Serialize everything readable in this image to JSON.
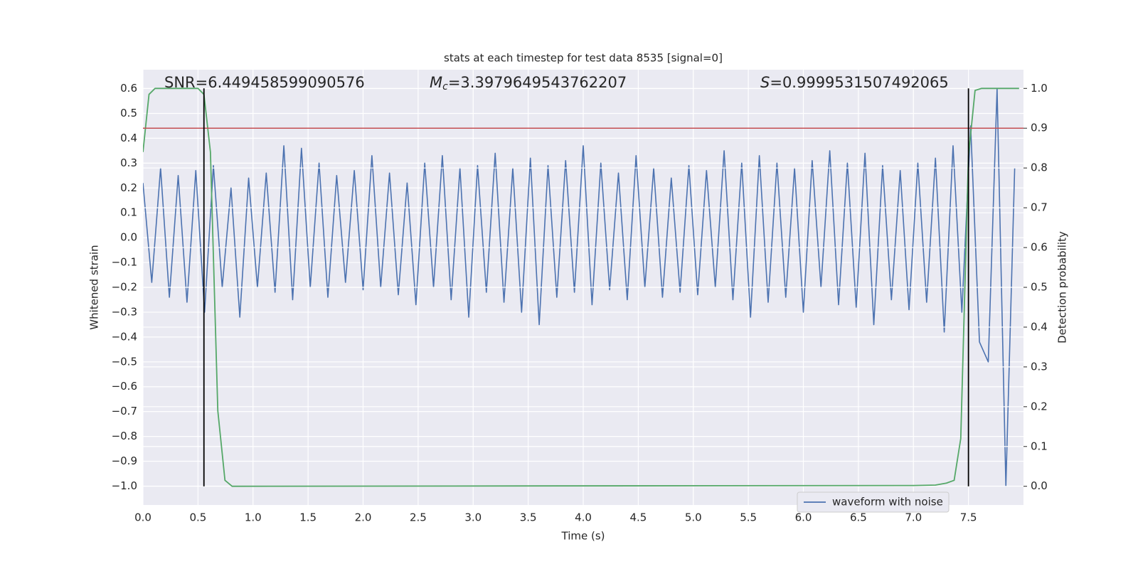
{
  "chart_data": {
    "type": "line",
    "title": "stats at each timestep for test data 8535 [signal=0]",
    "xlabel": "Time (s)",
    "ylabel": "Whitened strain",
    "y2label": "Detection probability",
    "annotations": [
      {
        "text": "SNR=6.449458599090576"
      },
      {
        "symbol": "M",
        "subscript": "c",
        "text": "=3.3979649543762207"
      },
      {
        "symbol": "S",
        "text": "=0.9999531507492065"
      }
    ],
    "xlim": [
      0,
      8.0
    ],
    "ylim": [
      -1.076,
      0.676
    ],
    "y2lim": [
      -0.047,
      1.047
    ],
    "xticks": [
      {
        "value": 0,
        "label": "0.0"
      },
      0.5,
      {
        "value": 1,
        "label": "1.0"
      },
      1.5,
      {
        "value": 2,
        "label": "2.0"
      },
      2.5,
      {
        "value": 3,
        "label": "3.0"
      },
      3.5,
      {
        "value": 4,
        "label": "4.0"
      },
      4.5,
      {
        "value": 5,
        "label": "5.0"
      },
      5.5,
      {
        "value": 6,
        "label": "6.0"
      },
      6.5,
      {
        "value": 7,
        "label": "7.0"
      },
      7.5
    ],
    "yticks": [
      {
        "value": -1.0,
        "label": "−1.0"
      },
      {
        "value": -0.9,
        "label": "−0.9"
      },
      {
        "value": -0.8,
        "label": "−0.8"
      },
      {
        "value": -0.7,
        "label": "−0.7"
      },
      {
        "value": -0.6,
        "label": "−0.6"
      },
      {
        "value": -0.5,
        "label": "−0.5"
      },
      {
        "value": -0.4,
        "label": "−0.4"
      },
      {
        "value": -0.3,
        "label": "−0.3"
      },
      {
        "value": -0.2,
        "label": "−0.2"
      },
      {
        "value": -0.1,
        "label": "−0.1"
      },
      {
        "value": 0,
        "label": "0.0"
      },
      0.1,
      0.2,
      0.3,
      0.4,
      0.5,
      0.6
    ],
    "y2ticks": [
      {
        "value": 0,
        "label": "0.0"
      },
      0.1,
      0.2,
      0.3,
      0.4,
      0.5,
      0.6,
      0.7,
      0.8,
      0.9,
      {
        "value": 1,
        "label": "1.0"
      }
    ],
    "grid": true,
    "legend": "lower right",
    "series": [
      {
        "name": "waveform with noise",
        "color": "#4c72b0",
        "axis": "y",
        "x": [
          0,
          0.08,
          0.16,
          0.24,
          0.32,
          0.4,
          0.48,
          0.56,
          0.64,
          0.72,
          0.8,
          0.88,
          0.96,
          1.04,
          1.12,
          1.2,
          1.28,
          1.36,
          1.44,
          1.52,
          1.6,
          1.68,
          1.76,
          1.84,
          1.92,
          2,
          2.08,
          2.16,
          2.24,
          2.32,
          2.4,
          2.48,
          2.56,
          2.64,
          2.72,
          2.8,
          2.88,
          2.96,
          3.04,
          3.12,
          3.2,
          3.28,
          3.36,
          3.44,
          3.52,
          3.6,
          3.68,
          3.76,
          3.84,
          3.92,
          4,
          4.08,
          4.16,
          4.24,
          4.32,
          4.4,
          4.48,
          4.56,
          4.64,
          4.72,
          4.8,
          4.88,
          4.96,
          5.04,
          5.12,
          5.2,
          5.28,
          5.36,
          5.44,
          5.52,
          5.6,
          5.68,
          5.76,
          5.84,
          5.92,
          6,
          6.08,
          6.16,
          6.24,
          6.32,
          6.4,
          6.48,
          6.56,
          6.64,
          6.72,
          6.8,
          6.88,
          6.96,
          7.04,
          7.12,
          7.2,
          7.28,
          7.36,
          7.44,
          7.52,
          7.6,
          7.68,
          7.76,
          7.84,
          7.92
        ],
        "values": [
          0.22,
          -0.18,
          0.28,
          -0.24,
          0.25,
          -0.26,
          0.27,
          -0.3,
          0.29,
          -0.2,
          0.2,
          -0.32,
          0.24,
          -0.2,
          0.26,
          -0.22,
          0.37,
          -0.25,
          0.36,
          -0.2,
          0.3,
          -0.24,
          0.25,
          -0.18,
          0.27,
          -0.21,
          0.33,
          -0.2,
          0.26,
          -0.23,
          0.22,
          -0.27,
          0.3,
          -0.2,
          0.33,
          -0.25,
          0.28,
          -0.32,
          0.29,
          -0.22,
          0.34,
          -0.26,
          0.28,
          -0.3,
          0.32,
          -0.35,
          0.29,
          -0.24,
          0.31,
          -0.22,
          0.37,
          -0.27,
          0.3,
          -0.21,
          0.26,
          -0.25,
          0.33,
          -0.2,
          0.28,
          -0.24,
          0.24,
          -0.22,
          0.29,
          -0.23,
          0.27,
          -0.2,
          0.35,
          -0.25,
          0.3,
          -0.32,
          0.33,
          -0.26,
          0.3,
          -0.24,
          0.28,
          -0.3,
          0.31,
          -0.2,
          0.35,
          -0.27,
          0.3,
          -0.28,
          0.34,
          -0.35,
          0.29,
          -0.25,
          0.27,
          -0.29,
          0.3,
          -0.26,
          0.32,
          -0.38,
          0.37,
          -0.3,
          0.45,
          -0.42,
          -0.5,
          0.6,
          -1.0,
          0.28
        ]
      },
      {
        "color": "#55a868",
        "axis": "y2",
        "x": [
          0,
          0.055,
          0.11,
          0.5,
          0.554,
          0.613,
          0.68,
          0.745,
          0.81,
          7.0,
          7.2,
          7.3,
          7.37,
          7.43,
          7.5,
          7.56,
          7.62,
          7.96
        ],
        "values": [
          0.84,
          0.985,
          1.0,
          1.0,
          0.985,
          0.84,
          0.19,
          0.015,
          0.0,
          0.002,
          0.003,
          0.008,
          0.015,
          0.12,
          0.83,
          0.995,
          1.0,
          1.0
        ]
      }
    ],
    "hline": {
      "y2": 0.9,
      "color": "#c44e52"
    },
    "vlines": {
      "x": [
        0.554,
        7.5
      ],
      "y2range": [
        0,
        1
      ],
      "color": "#000000"
    }
  }
}
